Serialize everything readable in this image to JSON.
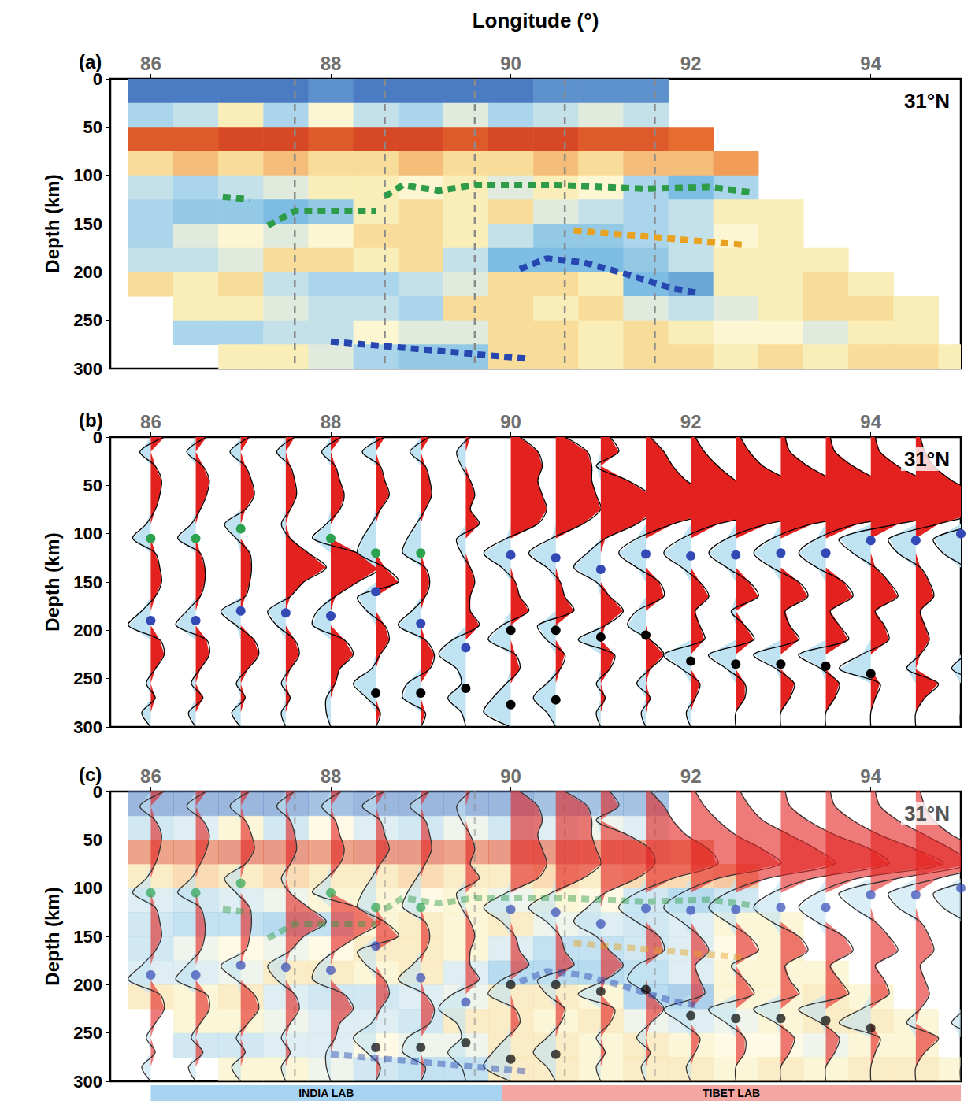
{
  "chart_data": [
    {
      "type": "tomography",
      "panel": "(a)",
      "annotation": "31°N",
      "x_label": "Longitude (°)",
      "y_label": "Depth (km)",
      "xlim": [
        85.55,
        95.0
      ],
      "xticks": [
        86,
        88,
        90,
        92,
        94
      ],
      "ylim": [
        0,
        300
      ],
      "yticks": [
        0,
        50,
        100,
        150,
        200,
        250,
        300
      ],
      "color_range": [
        -1,
        1
      ],
      "cells": {
        "x": [
          86,
          86.5,
          87,
          87.5,
          88,
          88.5,
          89,
          89.5,
          90,
          90.5,
          91,
          91.5,
          92,
          92.5,
          93,
          93.5,
          94,
          94.5,
          95
        ],
        "depth": [
          12.5,
          37.5,
          62.5,
          87.5,
          112.5,
          137.5,
          162.5,
          187.5,
          212.5,
          237.5,
          262.5,
          287.5
        ],
        "values": [
          [
            0.8,
            0.8,
            0.8,
            0.8,
            0.7,
            0.8,
            0.8,
            0.8,
            0.8,
            0.7,
            0.7,
            0.7,
            null,
            null,
            null,
            null,
            null,
            null,
            null
          ],
          [
            0.3,
            0.2,
            -0.1,
            0.3,
            0.0,
            0.2,
            0.3,
            0.1,
            0.3,
            0.2,
            0.1,
            0.2,
            null,
            null,
            null,
            null,
            null,
            null,
            null
          ],
          [
            -0.7,
            -0.7,
            -0.8,
            -0.8,
            -0.7,
            -0.8,
            -0.8,
            -0.7,
            -0.8,
            -0.8,
            -0.7,
            -0.7,
            -0.6,
            null,
            null,
            null,
            null,
            null,
            null
          ],
          [
            -0.2,
            -0.3,
            -0.2,
            -0.3,
            -0.2,
            -0.2,
            -0.3,
            -0.2,
            -0.2,
            -0.3,
            -0.2,
            -0.3,
            -0.3,
            -0.4,
            null,
            null,
            null,
            null,
            null
          ],
          [
            0.2,
            0.3,
            0.2,
            0.1,
            -0.1,
            -0.1,
            0.0,
            -0.1,
            0.1,
            -0.1,
            0.0,
            0.3,
            0.5,
            0.3,
            null,
            null,
            null,
            null,
            null
          ],
          [
            0.3,
            0.4,
            0.4,
            0.5,
            0.4,
            -0.1,
            -0.2,
            -0.1,
            -0.2,
            0.1,
            0.2,
            0.3,
            0.2,
            -0.1,
            -0.1,
            null,
            null,
            null,
            null
          ],
          [
            0.3,
            0.1,
            0.0,
            0.1,
            0.0,
            -0.2,
            -0.2,
            -0.1,
            0.2,
            0.4,
            0.4,
            0.3,
            0.2,
            0.0,
            -0.1,
            null,
            null,
            null,
            null
          ],
          [
            0.2,
            0.2,
            0.1,
            -0.2,
            -0.2,
            -0.1,
            -0.2,
            0.2,
            0.5,
            0.5,
            0.5,
            0.4,
            0.2,
            -0.1,
            -0.1,
            -0.1,
            null,
            null,
            null
          ],
          [
            -0.2,
            -0.1,
            -0.2,
            0.2,
            0.3,
            0.3,
            0.2,
            0.1,
            -0.2,
            -0.2,
            -0.1,
            0.5,
            0.6,
            -0.1,
            -0.1,
            -0.2,
            -0.1,
            null,
            null
          ],
          [
            null,
            -0.1,
            -0.1,
            0.1,
            0.2,
            0.2,
            0.3,
            -0.2,
            -0.2,
            -0.1,
            -0.2,
            0.1,
            0.2,
            0.1,
            -0.1,
            -0.2,
            -0.2,
            -0.1,
            null
          ],
          [
            null,
            0.3,
            0.3,
            0.2,
            0.2,
            0.0,
            0.1,
            0.1,
            -0.2,
            -0.2,
            -0.1,
            -0.2,
            -0.1,
            0.0,
            0.0,
            0.1,
            -0.1,
            -0.1,
            null
          ],
          [
            null,
            null,
            -0.1,
            -0.1,
            0.1,
            0.3,
            0.4,
            0.4,
            -0.2,
            -0.2,
            -0.1,
            -0.2,
            -0.2,
            -0.1,
            -0.2,
            -0.1,
            -0.2,
            -0.2,
            -0.1
          ]
        ]
      },
      "guides": [
        87.6,
        88.6,
        89.6,
        90.6,
        91.6
      ],
      "lines": [
        {
          "color": "#2e9b48",
          "line_style": "dashed",
          "points": [
            [
              86.8,
              122
            ],
            [
              87.1,
              125
            ]
          ]
        },
        {
          "color": "#2e9b48",
          "line_style": "dashed",
          "points": [
            [
              87.3,
              152
            ],
            [
              87.6,
              137
            ],
            [
              88.5,
              137
            ]
          ]
        },
        {
          "color": "#2e9b48",
          "line_style": "dashed",
          "points": [
            [
              88.6,
              122
            ],
            [
              88.8,
              110
            ],
            [
              89.2,
              116
            ],
            [
              89.6,
              110
            ],
            [
              90.5,
              110
            ],
            [
              91.5,
              114
            ],
            [
              92.2,
              112
            ],
            [
              92.7,
              118
            ]
          ]
        },
        {
          "color": "#e8a21f",
          "line_style": "dashed",
          "points": [
            [
              90.7,
              157
            ],
            [
              92.6,
              172
            ]
          ]
        },
        {
          "color": "#2747b0",
          "line_style": "dashed",
          "points": [
            [
              90.1,
              197
            ],
            [
              90.4,
              186
            ],
            [
              90.8,
              190
            ],
            [
              91.2,
              200
            ],
            [
              91.8,
              217
            ],
            [
              92.1,
              222
            ]
          ]
        },
        {
          "color": "#2747b0",
          "line_style": "dashed",
          "points": [
            [
              88,
              272
            ],
            [
              89,
              280
            ],
            [
              90.2,
              290
            ]
          ]
        }
      ]
    },
    {
      "type": "receiver_functions",
      "panel": "(b)",
      "annotation": "31°N",
      "y_label": "Depth (km)",
      "xlim": [
        85.55,
        95.0
      ],
      "xticks": [
        86,
        88,
        90,
        92,
        94
      ],
      "ylim": [
        0,
        300
      ],
      "yticks": [
        0,
        50,
        100,
        150,
        200,
        250,
        300
      ],
      "stations": [
        86,
        86.5,
        87,
        87.5,
        88,
        88.5,
        89,
        89.5,
        90,
        90.5,
        91,
        91.5,
        92,
        92.5,
        93,
        93.5,
        94,
        94.5,
        95
      ],
      "amplitude_depths": [
        0,
        15,
        30,
        45,
        60,
        75,
        90,
        105,
        120,
        135,
        150,
        165,
        180,
        195,
        210,
        225,
        240,
        255,
        270,
        285,
        300
      ],
      "amplitudes_deg": [
        [
          0.15,
          -0.12,
          0.05,
          0.12,
          0.1,
          0.05,
          -0.05,
          -0.2,
          0.05,
          0.1,
          0.12,
          0.05,
          -0.1,
          -0.25,
          0.1,
          0.15,
          0.05,
          -0.05,
          0.05,
          -0.1,
          0
        ],
        [
          0.12,
          -0.1,
          0.08,
          0.15,
          0.12,
          0.05,
          -0.05,
          -0.2,
          0.05,
          0.1,
          0.1,
          0.05,
          -0.1,
          -0.22,
          0.12,
          0.15,
          0.05,
          -0.05,
          0.08,
          -0.08,
          0
        ],
        [
          0.1,
          -0.12,
          0.05,
          0.12,
          0.15,
          0.05,
          -0.18,
          -0.05,
          0.1,
          0.12,
          0.1,
          0.05,
          -0.22,
          -0.05,
          0.15,
          0.2,
          0.08,
          -0.05,
          0.05,
          -0.1,
          0
        ],
        [
          0.1,
          -0.1,
          0.05,
          0.1,
          0.12,
          0.05,
          -0.05,
          0.05,
          0.25,
          0.45,
          0.2,
          0.05,
          -0.2,
          -0.1,
          0.1,
          0.15,
          0.05,
          -0.05,
          0.05,
          -0.05,
          0
        ],
        [
          0.12,
          -0.1,
          0.05,
          0.1,
          0.15,
          0.1,
          -0.05,
          -0.2,
          0.3,
          0.55,
          0.3,
          0.05,
          -0.15,
          -0.2,
          0.15,
          0.25,
          0.1,
          0.05,
          -0.05,
          -0.05,
          0
        ],
        [
          0.1,
          -0.15,
          0.05,
          0.1,
          0.15,
          0.05,
          -0.05,
          -0.15,
          -0.2,
          0.1,
          0.25,
          -0.2,
          -0.1,
          0.1,
          0.15,
          0.05,
          -0.05,
          -0.25,
          -0.1,
          0.05,
          0
        ],
        [
          0.1,
          -0.12,
          0.05,
          0.1,
          0.12,
          0.05,
          -0.05,
          -0.15,
          -0.2,
          0.05,
          0.1,
          0.05,
          -0.1,
          -0.25,
          0.05,
          0.15,
          0.1,
          -0.15,
          -0.2,
          0.05,
          0
        ],
        [
          0.05,
          -0.1,
          -0.05,
          0.05,
          0.1,
          0.05,
          0.15,
          -0.1,
          -0.05,
          0.05,
          0.1,
          0.05,
          0.05,
          0.15,
          -0.15,
          -0.3,
          -0.1,
          -0.05,
          -0.2,
          -0.05,
          0
        ],
        [
          0.1,
          0.3,
          0.35,
          0.3,
          0.35,
          0.4,
          0.3,
          -0.05,
          -0.3,
          -0.1,
          0.05,
          0.1,
          0.2,
          -0.1,
          -0.25,
          0.05,
          0.1,
          -0.05,
          -0.2,
          -0.3,
          0
        ],
        [
          0.1,
          0.35,
          0.4,
          0.4,
          0.45,
          0.5,
          0.3,
          -0.05,
          -0.3,
          -0.1,
          0.05,
          0.1,
          0.2,
          -0.2,
          -0.1,
          0.1,
          0.05,
          -0.1,
          -0.25,
          -0.1,
          0
        ],
        [
          0.1,
          0.2,
          -0.05,
          0.3,
          0.55,
          0.6,
          0.4,
          0.05,
          -0.15,
          -0.3,
          -0.05,
          0.1,
          0.25,
          0.05,
          -0.25,
          0.15,
          0.1,
          -0.05,
          0.05,
          -0.05,
          0
        ],
        [
          0.05,
          0.2,
          0.3,
          0.45,
          0.7,
          0.8,
          0.3,
          -0.1,
          -0.3,
          -0.1,
          0.15,
          0.2,
          -0.1,
          -0.2,
          0.05,
          0.2,
          0.05,
          -0.1,
          0.05,
          -0.05,
          0
        ],
        [
          0.05,
          0.15,
          0.3,
          0.5,
          0.8,
          1.0,
          0.3,
          -0.1,
          -0.3,
          -0.1,
          0.1,
          0.2,
          0.05,
          0.1,
          0.15,
          -0.3,
          -0.1,
          0.1,
          0.05,
          -0.05,
          0
        ],
        [
          0.05,
          0.15,
          0.3,
          0.6,
          0.9,
          1.1,
          0.35,
          -0.1,
          -0.3,
          -0.1,
          0.15,
          0.25,
          -0.05,
          0.1,
          0.2,
          -0.3,
          -0.1,
          0.1,
          0.1,
          0,
          0
        ],
        [
          0.05,
          0.1,
          0.3,
          0.6,
          1.0,
          1.2,
          0.35,
          -0.1,
          -0.3,
          -0.1,
          0.2,
          0.3,
          0.05,
          0.1,
          0.2,
          -0.3,
          -0.05,
          0.15,
          0.1,
          0,
          0
        ],
        [
          0.05,
          0.1,
          0.3,
          0.6,
          1.0,
          1.3,
          0.35,
          -0.1,
          -0.3,
          -0.1,
          0.2,
          0.3,
          0.05,
          0.15,
          0.25,
          -0.3,
          -0.05,
          0.15,
          0.1,
          0,
          0
        ],
        [
          0.05,
          0.1,
          0.3,
          0.6,
          0.9,
          1.1,
          0.3,
          -0.35,
          -0.2,
          0.05,
          0.2,
          0.3,
          0.05,
          0.15,
          0.2,
          -0.1,
          -0.35,
          0.1,
          0.05,
          0,
          0
        ],
        [
          0.05,
          0.1,
          0.2,
          0.4,
          0.7,
          0.8,
          0.25,
          -0.3,
          -0.2,
          0.05,
          0.15,
          0.2,
          0.05,
          0.1,
          0.15,
          0.05,
          -0.1,
          0.25,
          0.1,
          0,
          0
        ],
        [
          0.05,
          0.1,
          0.2,
          0.3,
          0.5,
          0.6,
          0.2,
          -0.3,
          -0.2,
          0.05,
          0.15,
          0.2,
          0.05,
          0.1,
          0.15,
          0.05,
          -0.1,
          0.2,
          0.1,
          0,
          0
        ]
      ],
      "positive_color": "#e3221f",
      "negative_color": "#bfe3f2",
      "picks": [
        {
          "color": "#2ca24f",
          "marker": "circle",
          "points": [
            [
              86,
              105
            ],
            [
              86.5,
              105
            ],
            [
              87,
              95
            ],
            [
              88,
              105
            ],
            [
              88.5,
              120
            ],
            [
              89,
              120
            ]
          ]
        },
        {
          "color": "#3349b5",
          "marker": "circle",
          "points": [
            [
              86,
              190
            ],
            [
              86.5,
              190
            ],
            [
              87,
              180
            ],
            [
              87.5,
              182
            ],
            [
              88,
              185
            ],
            [
              88.5,
              160
            ],
            [
              89,
              193
            ],
            [
              89.5,
              218
            ],
            [
              90,
              122
            ],
            [
              90.5,
              125
            ],
            [
              91,
              137
            ],
            [
              91.5,
              121
            ],
            [
              92,
              123
            ],
            [
              92.5,
              122
            ],
            [
              93,
              120
            ],
            [
              93.5,
              120
            ],
            [
              94,
              107
            ],
            [
              94.5,
              107
            ],
            [
              95,
              100
            ]
          ]
        },
        {
          "color": "#000000",
          "marker": "circle",
          "points": [
            [
              88.5,
              265
            ],
            [
              89,
              265
            ],
            [
              89.5,
              260
            ],
            [
              90,
              277
            ],
            [
              90.5,
              272
            ],
            [
              90,
              200
            ],
            [
              90.5,
              200
            ],
            [
              91,
              207
            ],
            [
              91.5,
              205
            ],
            [
              92,
              232
            ],
            [
              92.5,
              235
            ],
            [
              93,
              235
            ],
            [
              93.5,
              237
            ],
            [
              94,
              245
            ]
          ]
        }
      ]
    },
    {
      "type": "overlay",
      "panel": "(c)",
      "annotation": "31°N",
      "y_label": "Depth (km)",
      "xlim": [
        85.55,
        95.0
      ],
      "xticks": [
        86,
        88,
        90,
        92,
        94
      ],
      "ylim": [
        0,
        300
      ],
      "yticks": [
        0,
        50,
        100,
        150,
        200,
        250,
        300
      ],
      "overlay": true,
      "lab_bars": [
        {
          "label": "INDIA LAB",
          "from": 86,
          "to": 89.9,
          "color": "#a6d3ef"
        },
        {
          "label": "TIBET LAB",
          "from": 89.9,
          "to": 95,
          "color": "#f4a6a3"
        }
      ]
    }
  ]
}
